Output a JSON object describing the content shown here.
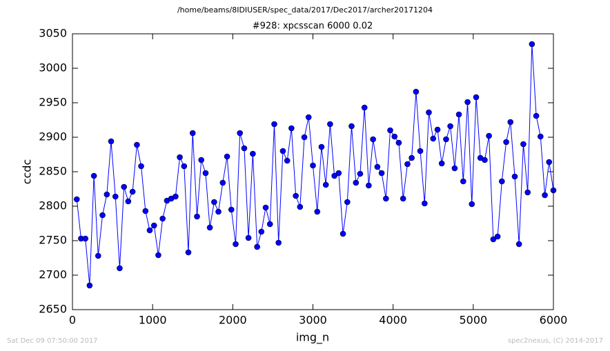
{
  "chart_data": {
    "type": "line",
    "suptitle": "/home/beams/8IDIUSER/spec_data/2017/Dec2017/archer20171204",
    "title": "#928: xpcsscan 6000 0.02",
    "x_label": "img_n",
    "y_label": "ccdc",
    "footer_left": "Sat Dec 09 07:50:00 2017",
    "footer_right": "spec2nexus, (C) 2014-2017",
    "xlim": [
      0,
      6000
    ],
    "xticks": [
      0,
      1000,
      2000,
      3000,
      4000,
      5000,
      6000
    ],
    "ylim": [
      2650,
      3050
    ],
    "yticks": [
      2650,
      2700,
      2750,
      2800,
      2850,
      2900,
      2950,
      3000,
      3050
    ],
    "grid": false,
    "series": [
      {
        "name": "ccdc",
        "color": "#0000ff",
        "marker": "circle",
        "x": [
          54,
          107,
          161,
          214,
          268,
          321,
          375,
          429,
          482,
          536,
          589,
          643,
          696,
          750,
          804,
          857,
          911,
          964,
          1018,
          1071,
          1125,
          1179,
          1232,
          1286,
          1339,
          1393,
          1446,
          1500,
          1554,
          1607,
          1661,
          1714,
          1768,
          1821,
          1875,
          1929,
          1982,
          2036,
          2089,
          2143,
          2196,
          2250,
          2304,
          2357,
          2411,
          2464,
          2518,
          2571,
          2625,
          2679,
          2732,
          2786,
          2839,
          2893,
          2946,
          3000,
          3054,
          3107,
          3161,
          3214,
          3268,
          3321,
          3375,
          3429,
          3482,
          3536,
          3589,
          3643,
          3696,
          3750,
          3804,
          3857,
          3911,
          3964,
          4018,
          4071,
          4125,
          4179,
          4232,
          4286,
          4339,
          4393,
          4446,
          4500,
          4554,
          4607,
          4661,
          4714,
          4768,
          4821,
          4875,
          4929,
          4982,
          5036,
          5089,
          5143,
          5196,
          5250,
          5304,
          5357,
          5411,
          5464,
          5518,
          5571,
          5625,
          5679,
          5732,
          5786,
          5839,
          5893,
          5946,
          6000
        ],
        "values": [
          2810,
          2753,
          2753,
          2685,
          2844,
          2728,
          2787,
          2817,
          2894,
          2814,
          2710,
          2828,
          2807,
          2821,
          2889,
          2858,
          2793,
          2765,
          2772,
          2729,
          2782,
          2808,
          2811,
          2814,
          2871,
          2858,
          2733,
          2906,
          2785,
          2867,
          2848,
          2769,
          2806,
          2792,
          2834,
          2872,
          2795,
          2745,
          2906,
          2884,
          2754,
          2876,
          2741,
          2763,
          2798,
          2774,
          2919,
          2747,
          2880,
          2866,
          2913,
          2815,
          2799,
          2900,
          2929,
          2859,
          2792,
          2886,
          2831,
          2919,
          2844,
          2848,
          2760,
          2806,
          2916,
          2834,
          2847,
          2943,
          2830,
          2897,
          2857,
          2848,
          2811,
          2910,
          2901,
          2892,
          2811,
          2861,
          2870,
          2966,
          2880,
          2804,
          2936,
          2898,
          2911,
          2862,
          2897,
          2916,
          2855,
          2933,
          2836,
          2951,
          2803,
          2958,
          2870,
          2867,
          2902,
          2752,
          2756,
          2836,
          2893,
          2922,
          2843,
          2745,
          2890,
          2820,
          3035,
          2931,
          2901,
          2816,
          2864,
          2823
        ]
      }
    ]
  }
}
